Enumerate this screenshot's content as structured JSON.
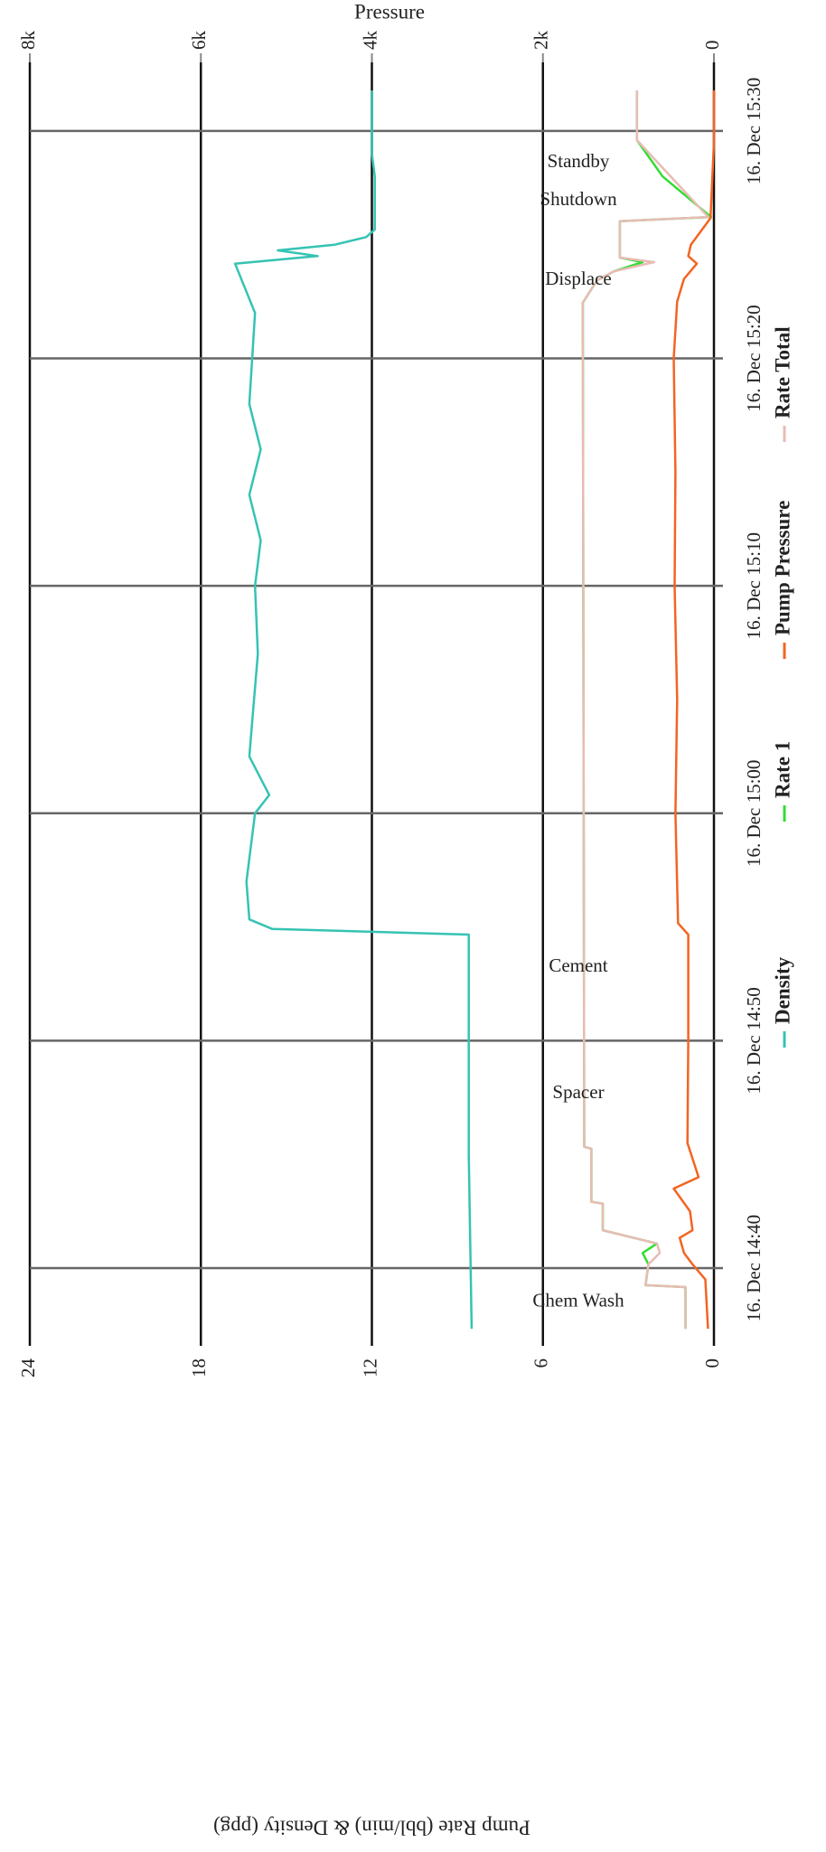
{
  "chart_data": {
    "type": "line",
    "xlim": [
      "14:36:35",
      "15:33:01"
    ],
    "xticks": [
      {
        "value": "14:40",
        "label": "16. Dec 14:40"
      },
      {
        "value": "14:50",
        "label": "16. Dec 14:50"
      },
      {
        "value": "15:00",
        "label": "16. Dec 15:00"
      },
      {
        "value": "15:10",
        "label": "16. Dec 15:10"
      },
      {
        "value": "15:20",
        "label": "16. Dec 15:20"
      },
      {
        "value": "15:30",
        "label": "16. Dec 15:30"
      }
    ],
    "ylabel": "Pump Rate (bbl/min) & Density (ppg)",
    "ylim": [
      0,
      24
    ],
    "yticks": [
      0,
      6,
      12,
      18,
      24
    ],
    "y2label": "Pressure",
    "y2lim": [
      0,
      8000
    ],
    "y2ticks": [
      0,
      {
        "value": 2000,
        "label": "2k"
      },
      {
        "value": 4000,
        "label": "4k"
      },
      {
        "value": 6000,
        "label": "6k"
      },
      {
        "value": 8000,
        "label": "8k"
      }
    ],
    "grid": true,
    "legend": "bottom",
    "annotations": [
      {
        "text": "Chem Wash",
        "x": "14:38:30"
      },
      {
        "text": "Spacer",
        "x": "14:47:40"
      },
      {
        "text": "Cement",
        "x": "14:53:14"
      },
      {
        "text": "Displace",
        "x": "15:23:26"
      },
      {
        "text": "Shutdown",
        "x": "15:26:56"
      },
      {
        "text": "Standby",
        "x": "15:28:36"
      }
    ],
    "series": [
      {
        "name": "Density",
        "color": "#35c3b3",
        "axis": "y",
        "x": [
          "14:37:20",
          "14:45:00",
          "14:50:00",
          "14:54:40",
          "14:54:55",
          "14:55:20",
          "14:57:00",
          "15:00:00",
          "15:00:48",
          "15:02:30",
          "15:04:00",
          "15:07:00",
          "15:10:00",
          "15:12:00",
          "15:14:00",
          "15:16:00",
          "15:18:00",
          "15:22:00",
          "15:24:10",
          "15:24:30",
          "15:24:45",
          "15:25:00",
          "15:25:20",
          "15:25:40",
          "15:28:00",
          "15:29:00",
          "15:31:47"
        ],
        "values": [
          8.5,
          8.6,
          8.6,
          8.6,
          15.5,
          16.3,
          16.4,
          16.1,
          15.6,
          16.3,
          16.2,
          16.0,
          16.1,
          15.9,
          16.3,
          15.9,
          16.3,
          16.1,
          16.8,
          13.9,
          15.3,
          13.3,
          12.2,
          11.9,
          11.9,
          12.0,
          12.0
        ]
      },
      {
        "name": "Rate 1",
        "color": "#33dd33",
        "axis": "y",
        "x": [
          "14:37:20",
          "14:39:10",
          "14:39:15",
          "14:40:10",
          "14:40:40",
          "14:41:05",
          "14:41:40",
          "14:42:50",
          "14:42:55",
          "14:45:15",
          "14:45:20",
          "15:22:27",
          "15:23:26",
          "15:23:50",
          "15:24:14",
          "15:24:26",
          "15:26:02",
          "15:26:13",
          "15:28:00",
          "15:29:36",
          "15:31:47"
        ],
        "values": [
          1.0,
          1.0,
          2.4,
          2.3,
          2.5,
          2.0,
          3.9,
          3.9,
          4.3,
          4.3,
          4.55,
          4.6,
          4.1,
          3.5,
          2.5,
          3.3,
          3.3,
          0.1,
          1.8,
          2.7,
          2.7
        ]
      },
      {
        "name": "Pump Pressure",
        "color": "#f26522",
        "axis": "y2",
        "x": [
          "14:37:20",
          "14:39:30",
          "14:40:10",
          "14:40:40",
          "14:41:20",
          "14:41:40",
          "14:42:30",
          "14:43:30",
          "14:44:00",
          "14:45:30",
          "14:50:00",
          "14:54:40",
          "14:55:10",
          "15:00:00",
          "15:05:00",
          "15:10:00",
          "15:15:00",
          "15:20:00",
          "15:22:30",
          "15:23:30",
          "15:24:10",
          "15:24:30",
          "15:25:00",
          "15:26:10",
          "15:29:30",
          "15:31:47"
        ],
        "values": [
          70,
          100,
          250,
          350,
          400,
          250,
          280,
          470,
          180,
          310,
          300,
          300,
          420,
          450,
          430,
          460,
          450,
          470,
          430,
          350,
          200,
          300,
          270,
          40,
          0,
          0
        ]
      },
      {
        "name": "Rate Total",
        "color": "#e8bcb4",
        "axis": "y",
        "x": [
          "14:37:20",
          "14:39:10",
          "14:39:15",
          "14:40:10",
          "14:40:40",
          "14:41:05",
          "14:41:40",
          "14:42:50",
          "14:42:55",
          "14:45:15",
          "14:45:20",
          "15:22:27",
          "15:23:26",
          "15:23:50",
          "15:24:14",
          "15:24:26",
          "15:26:02",
          "15:26:13",
          "15:29:36",
          "15:31:47"
        ],
        "values": [
          1.0,
          1.0,
          2.4,
          2.3,
          1.9,
          2.0,
          3.9,
          3.9,
          4.3,
          4.3,
          4.55,
          4.6,
          4.1,
          3.5,
          2.1,
          3.3,
          3.3,
          0.2,
          2.7,
          2.7
        ]
      }
    ]
  }
}
